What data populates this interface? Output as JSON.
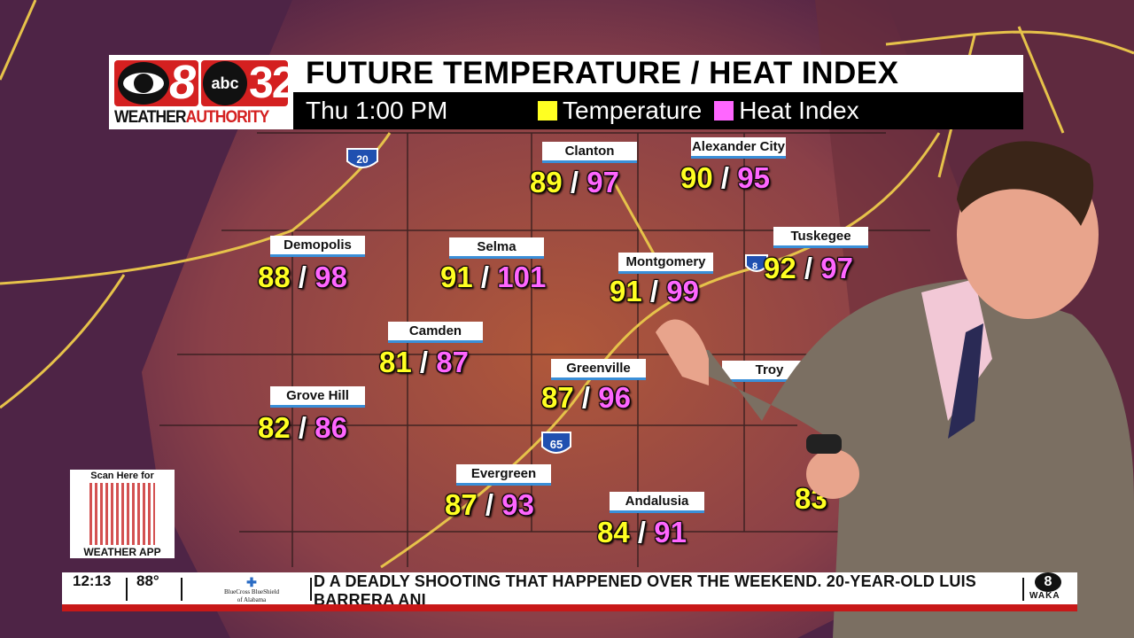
{
  "logo": {
    "cbs_number": "8",
    "abc": "abc",
    "abc_number": "32",
    "weather": "WEATHER",
    "authority": "AUTHORITY"
  },
  "header": {
    "title": "FUTURE TEMPERATURE / HEAT INDEX",
    "time": "Thu 1:00 PM",
    "legend": [
      {
        "label": "Temperature",
        "color": "#ffff22"
      },
      {
        "label": "Heat Index",
        "color": "#ff66ff"
      }
    ]
  },
  "cities": [
    {
      "name": "Clanton",
      "temp": "89",
      "heat": "97"
    },
    {
      "name": "Alexander City",
      "temp": "90",
      "heat": "95"
    },
    {
      "name": "Demopolis",
      "temp": "88",
      "heat": "98"
    },
    {
      "name": "Selma",
      "temp": "91",
      "heat": "101"
    },
    {
      "name": "Montgomery",
      "temp": "91",
      "heat": "99"
    },
    {
      "name": "Tuskegee",
      "temp": "92",
      "heat": "97"
    },
    {
      "name": "Camden",
      "temp": "81",
      "heat": "87"
    },
    {
      "name": "Greenville",
      "temp": "87",
      "heat": "96"
    },
    {
      "name": "Troy"
    },
    {
      "name": "Grove Hill",
      "temp": "82",
      "heat": "86"
    },
    {
      "name": "Evergreen",
      "temp": "87",
      "heat": "93"
    },
    {
      "name": "Andalusia",
      "temp": "84",
      "heat": "91"
    }
  ],
  "partial_value": "83",
  "interstates": [
    "20",
    "65",
    "85"
  ],
  "qr": {
    "top": "Scan Here for",
    "bottom": "WEATHER APP"
  },
  "ticker": {
    "time": "12:13",
    "temp": "88°",
    "sponsor_line1": "BlueCross BlueShield",
    "sponsor_line2": "of Alabama",
    "news": "D A DEADLY SHOOTING THAT HAPPENED OVER THE WEEKEND. 20-YEAR-OLD LUIS BARRERA ANI",
    "station": "WAKA"
  }
}
